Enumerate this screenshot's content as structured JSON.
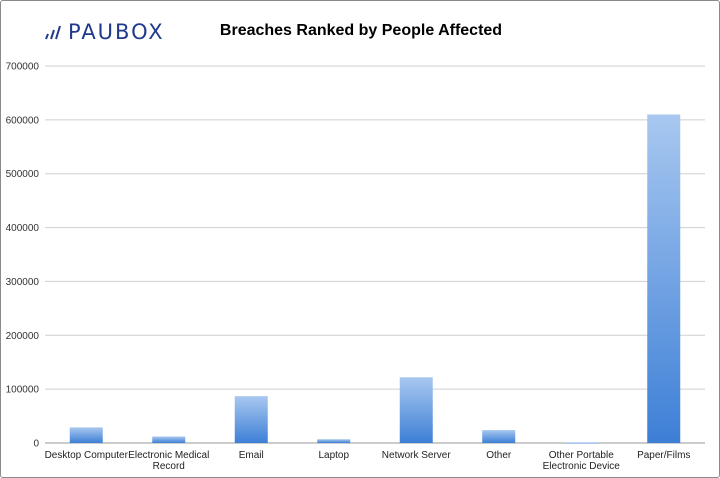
{
  "logo": {
    "text": "PAUBOX"
  },
  "chart_data": {
    "type": "bar",
    "title": "Breaches Ranked by People Affected",
    "xlabel": "",
    "ylabel": "",
    "ylim": [
      0,
      700000
    ],
    "yticks": [
      0,
      100000,
      200000,
      300000,
      400000,
      500000,
      600000,
      700000
    ],
    "ytick_labels": [
      "0",
      "100000",
      "200000",
      "300000",
      "400000",
      "500000",
      "600000",
      "700000"
    ],
    "grid": true,
    "legend": "none",
    "bar_color_top": "#a8c8f0",
    "bar_color_bottom": "#3d7fd6",
    "categories": [
      [
        "Desktop Computer"
      ],
      [
        "Electronic Medical",
        "Record"
      ],
      [
        "Email"
      ],
      [
        "Laptop"
      ],
      [
        "Network Server"
      ],
      [
        "Other"
      ],
      [
        "Other Portable",
        "Electronic Device"
      ],
      [
        "Paper/Films"
      ]
    ],
    "values": [
      29000,
      12000,
      87000,
      7000,
      122000,
      24000,
      1000,
      610000
    ]
  }
}
